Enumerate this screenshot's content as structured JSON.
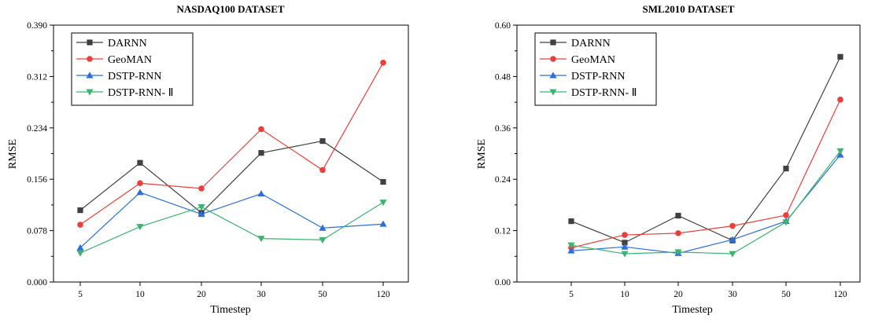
{
  "chart_data": [
    {
      "type": "line",
      "title": "NASDAQ100 DATASET",
      "xlabel": "Timestep",
      "ylabel": "RMSE",
      "categories": [
        "5",
        "10",
        "20",
        "30",
        "50",
        "120"
      ],
      "yticks": [
        "0.000",
        "0.078",
        "0.156",
        "0.234",
        "0.312",
        "0.390"
      ],
      "ylim": [
        0,
        0.39
      ],
      "grid": false,
      "legend_position": "top-left",
      "series": [
        {
          "name": "DARNN",
          "color": "#404040",
          "marker": "square",
          "values": [
            0.109,
            0.181,
            0.105,
            0.196,
            0.214,
            0.152
          ]
        },
        {
          "name": "GeoMAN",
          "color": "#e8413c",
          "marker": "circle",
          "values": [
            0.087,
            0.15,
            0.142,
            0.232,
            0.17,
            0.333
          ]
        },
        {
          "name": "DSTP-RNN",
          "color": "#2a6fdb",
          "marker": "triangle-up",
          "values": [
            0.052,
            0.136,
            0.103,
            0.134,
            0.082,
            0.088
          ]
        },
        {
          "name": "DSTP-RNN- Ⅱ",
          "color": "#3cb371",
          "marker": "triangle-down",
          "values": [
            0.044,
            0.084,
            0.114,
            0.066,
            0.064,
            0.121
          ]
        }
      ]
    },
    {
      "type": "line",
      "title": "SML2010 DATASET",
      "xlabel": "Timestep",
      "ylabel": "RMSE",
      "categories": [
        "5",
        "10",
        "20",
        "30",
        "50",
        "120"
      ],
      "yticks": [
        "0.00",
        "0.12",
        "0.24",
        "0.36",
        "0.48",
        "0.60"
      ],
      "ylim": [
        0,
        0.6
      ],
      "grid": false,
      "legend_position": "top-left",
      "series": [
        {
          "name": "DARNN",
          "color": "#404040",
          "marker": "square",
          "values": [
            0.142,
            0.092,
            0.155,
            0.097,
            0.265,
            0.526
          ]
        },
        {
          "name": "GeoMAN",
          "color": "#e8413c",
          "marker": "circle",
          "values": [
            0.08,
            0.11,
            0.114,
            0.131,
            0.156,
            0.426
          ]
        },
        {
          "name": "DSTP-RNN",
          "color": "#2a6fdb",
          "marker": "triangle-up",
          "values": [
            0.073,
            0.082,
            0.067,
            0.099,
            0.142,
            0.297
          ]
        },
        {
          "name": "DSTP-RNN- Ⅱ",
          "color": "#3cb371",
          "marker": "triangle-down",
          "values": [
            0.086,
            0.066,
            0.07,
            0.066,
            0.14,
            0.306
          ]
        }
      ]
    }
  ]
}
